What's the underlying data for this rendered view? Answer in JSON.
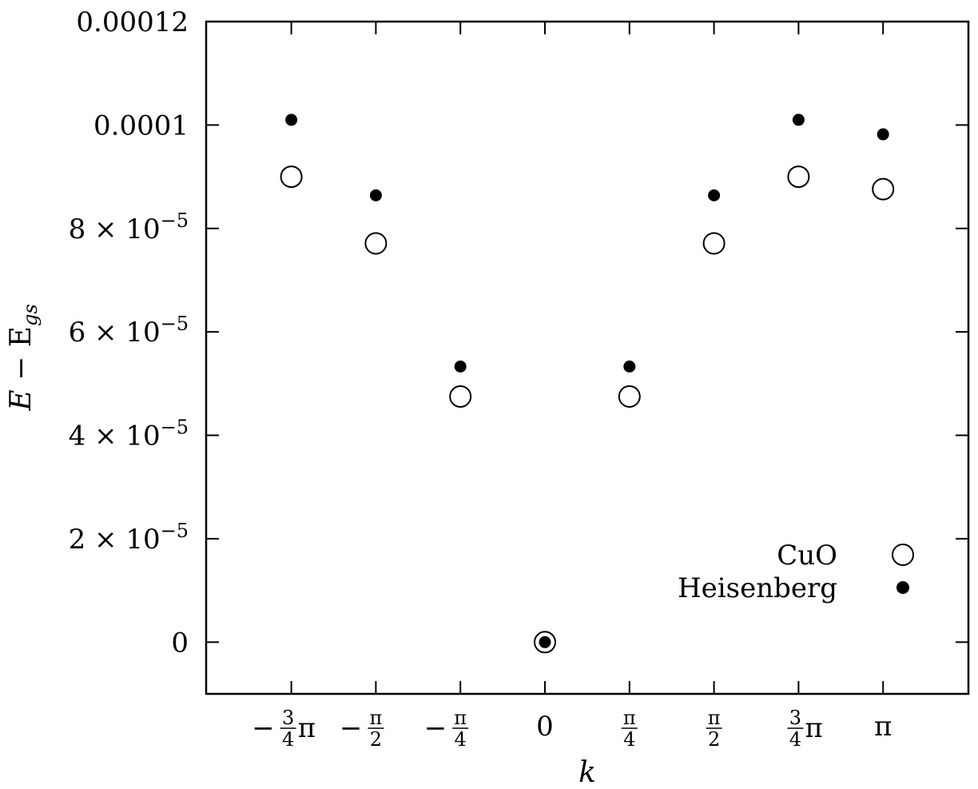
{
  "chart_data": {
    "type": "scatter",
    "xlabel": "k",
    "ylabel": "E − E_gs",
    "ylabel_main": "E",
    "ylabel_op": " − E",
    "ylabel_sub": "gs",
    "xlim": [
      -4,
      4
    ],
    "ylim": [
      -1e-05,
      0.00012
    ],
    "grid": false,
    "legend_position": "bottom-right",
    "x_ticks": [
      {
        "value": -3,
        "kind": "frac_pi",
        "sign": "−",
        "num": "3",
        "den": "4",
        "suffix": "π"
      },
      {
        "value": -2,
        "kind": "frac",
        "sign": "−",
        "num": "π",
        "den": "2",
        "suffix": ""
      },
      {
        "value": -1,
        "kind": "frac",
        "sign": "−",
        "num": "π",
        "den": "4",
        "suffix": ""
      },
      {
        "value": 0,
        "kind": "plain",
        "text": "0"
      },
      {
        "value": 1,
        "kind": "frac",
        "sign": "",
        "num": "π",
        "den": "4",
        "suffix": ""
      },
      {
        "value": 2,
        "kind": "frac",
        "sign": "",
        "num": "π",
        "den": "2",
        "suffix": ""
      },
      {
        "value": 3,
        "kind": "frac_pi",
        "sign": "",
        "num": "3",
        "den": "4",
        "suffix": "π"
      },
      {
        "value": 4,
        "kind": "plain",
        "text": "π"
      }
    ],
    "y_ticks": [
      {
        "value": 0,
        "mantissa": "0",
        "exp": ""
      },
      {
        "value": 2e-05,
        "mantissa": "2 × 10",
        "exp": "−5"
      },
      {
        "value": 4e-05,
        "mantissa": "4 × 10",
        "exp": "−5"
      },
      {
        "value": 6e-05,
        "mantissa": "6 × 10",
        "exp": "−5"
      },
      {
        "value": 8e-05,
        "mantissa": "8 × 10",
        "exp": "−5"
      },
      {
        "value": 0.0001,
        "mantissa": "0.0001",
        "exp": ""
      },
      {
        "value": 0.00012,
        "mantissa": "0.00012",
        "exp": ""
      }
    ],
    "series": [
      {
        "name": "CuO",
        "marker": "open-circle",
        "x": [
          -3,
          -2,
          -1,
          0,
          1,
          2,
          3,
          4
        ],
        "y": [
          9e-05,
          7.71e-05,
          4.75e-05,
          0,
          4.75e-05,
          7.71e-05,
          9e-05,
          8.76e-05
        ]
      },
      {
        "name": "Heisenberg",
        "marker": "filled-circle",
        "x": [
          -3,
          -2,
          -1,
          0,
          1,
          2,
          3,
          4
        ],
        "y": [
          0.000101,
          8.64e-05,
          5.33e-05,
          0,
          5.33e-05,
          8.64e-05,
          0.000101,
          9.82e-05
        ]
      }
    ]
  }
}
